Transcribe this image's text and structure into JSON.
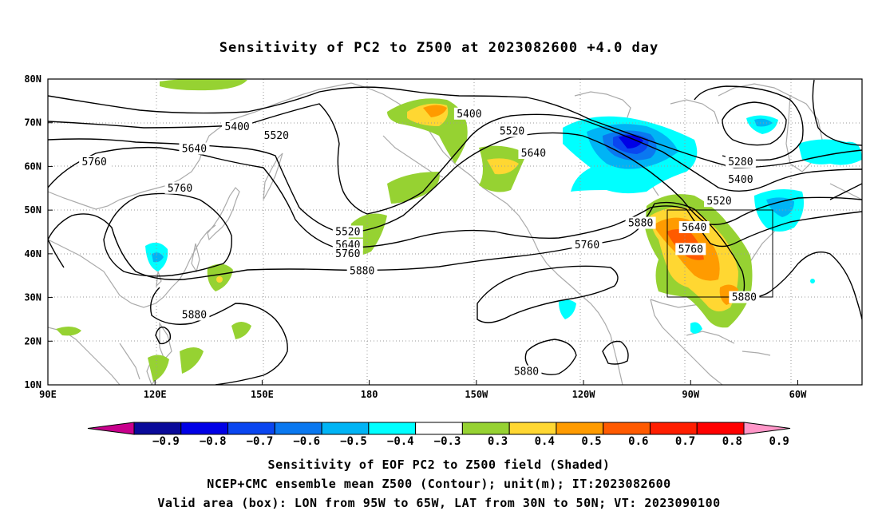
{
  "title": "Sensitivity of PC2 to Z500 at 2023082600 +4.0 day",
  "lat_ticks": [
    "80N",
    "70N",
    "60N",
    "50N",
    "40N",
    "30N",
    "20N",
    "10N"
  ],
  "lon_ticks": [
    "90E",
    "120E",
    "150E",
    "180",
    "150W",
    "120W",
    "90W",
    "60W"
  ],
  "contour_labels": [
    {
      "text": "5400",
      "lon": 143,
      "lat": 69
    },
    {
      "text": "5520",
      "lon": 154,
      "lat": 67
    },
    {
      "text": "5640",
      "lon": 131,
      "lat": 64
    },
    {
      "text": "5760",
      "lon": 103,
      "lat": 61
    },
    {
      "text": "5760",
      "lon": 127,
      "lat": 55
    },
    {
      "text": "5880",
      "lon": 131,
      "lat": 26
    },
    {
      "text": "5520",
      "lon": 174,
      "lat": 45
    },
    {
      "text": "5640",
      "lon": 174,
      "lat": 42
    },
    {
      "text": "5760",
      "lon": 174,
      "lat": 40
    },
    {
      "text": "5880",
      "lon": 178,
      "lat": 36
    },
    {
      "text": "5400",
      "lon": -152,
      "lat": 72
    },
    {
      "text": "5520",
      "lon": -140,
      "lat": 68
    },
    {
      "text": "5640",
      "lon": -134,
      "lat": 63
    },
    {
      "text": "5760",
      "lon": -119,
      "lat": 42
    },
    {
      "text": "5880",
      "lon": -104,
      "lat": 47
    },
    {
      "text": "5640",
      "lon": -89,
      "lat": 46
    },
    {
      "text": "5760",
      "lon": -90,
      "lat": 41
    },
    {
      "text": "5880",
      "lon": -75,
      "lat": 30
    },
    {
      "text": "5280",
      "lon": -76,
      "lat": 61
    },
    {
      "text": "5400",
      "lon": -76,
      "lat": 57
    },
    {
      "text": "5520",
      "lon": -82,
      "lat": 52
    },
    {
      "text": "5880",
      "lon": -136,
      "lat": 13
    }
  ],
  "valid_box": {
    "lon_w": -95,
    "lon_e": -65,
    "lat_s": 30,
    "lat_n": 50
  },
  "colorbar": {
    "colors": [
      "#c8008c",
      "#0a0a9a",
      "#0000e6",
      "#0a46f0",
      "#0a78f0",
      "#00b4f5",
      "#00ffff",
      "#ffffff",
      "#96d232",
      "#ffd732",
      "#ff9b00",
      "#ff5a00",
      "#ff1e00",
      "#ff0000",
      "#ff96c8"
    ],
    "labels": [
      "−0.9",
      "−0.8",
      "−0.7",
      "−0.6",
      "−0.5",
      "−0.4",
      "−0.3",
      "0.3",
      "0.4",
      "0.5",
      "0.6",
      "0.7",
      "0.8",
      "0.9"
    ]
  },
  "footer": {
    "line1": "Sensitivity of EOF PC2 to Z500 field (Shaded)",
    "line2": "NCEP+CMC ensemble mean Z500 (Contour); unit(m); IT:2023082600",
    "line3": "Valid area (box): LON from 95W to 65W, LAT from 30N to 50N; VT: 2023090100"
  }
}
